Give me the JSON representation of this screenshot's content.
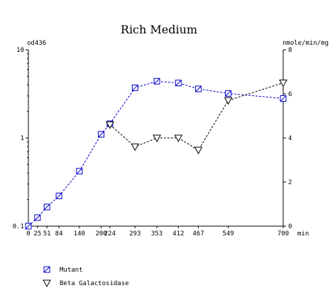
{
  "chart_data": {
    "type": "line",
    "title": "Rich Medium",
    "left_axis_label": "od436",
    "right_axis_label": "nmole/min/mg",
    "x_unit": "min",
    "x_ticks": [
      0,
      25,
      51,
      84,
      140,
      200,
      224,
      293,
      353,
      412,
      467,
      549,
      700
    ],
    "xlim": [
      0,
      700
    ],
    "left_ylim": [
      0.1,
      10
    ],
    "left_scale": "log",
    "left_ticks": [
      {
        "value": 0.1,
        "label": "0.1"
      },
      {
        "value": 1,
        "label": "1"
      },
      {
        "value": 10,
        "label": "10"
      }
    ],
    "right_ylim": [
      0,
      8
    ],
    "right_ticks": [
      0,
      2,
      4,
      6,
      8
    ],
    "series": [
      {
        "name": "Mutant",
        "axis": "left",
        "marker": "square",
        "color": "#0000cc",
        "x": [
          0,
          25,
          51,
          84,
          140,
          200,
          224,
          293,
          353,
          412,
          467,
          549,
          700
        ],
        "y": [
          0.1,
          0.125,
          0.165,
          0.22,
          0.42,
          1.1,
          1.45,
          3.7,
          4.4,
          4.2,
          3.6,
          3.2,
          2.8
        ]
      },
      {
        "name": "Beta Galactosidase",
        "axis": "right",
        "marker": "triangle-down",
        "color": "#000000",
        "x": [
          224,
          293,
          353,
          412,
          467,
          549,
          700
        ],
        "y": [
          4.6,
          3.6,
          4.0,
          4.0,
          3.45,
          5.7,
          6.5
        ]
      }
    ],
    "legend": "bottom-left",
    "grid": false
  }
}
